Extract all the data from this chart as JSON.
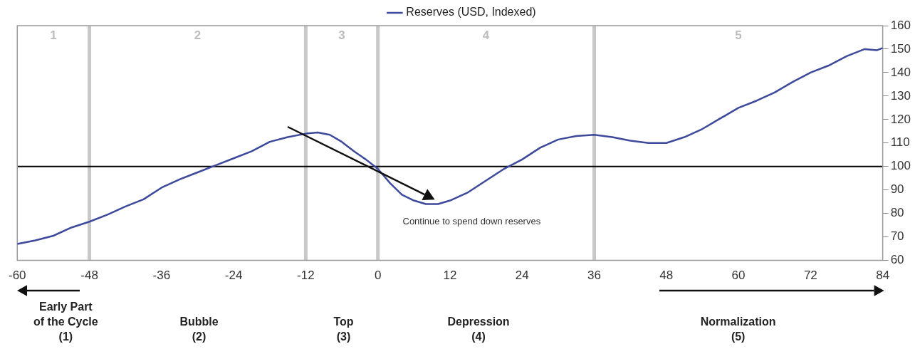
{
  "chart_data": {
    "type": "line",
    "x": [
      -60,
      -57,
      -54,
      -51,
      -48,
      -45,
      -42,
      -39,
      -36,
      -33,
      -30,
      -27,
      -24,
      -21,
      -18,
      -15,
      -12,
      -10,
      -8,
      -6,
      -4,
      -2,
      0,
      2,
      4,
      6,
      8,
      10,
      12,
      15,
      18,
      21,
      24,
      27,
      30,
      33,
      36,
      39,
      42,
      45,
      48,
      51,
      54,
      57,
      60,
      63,
      66,
      69,
      72,
      75,
      78,
      81,
      83,
      84
    ],
    "series": [
      {
        "name": "Reserves (USD, Indexed)",
        "color": "#3d4a9c",
        "values": [
          67,
          68.5,
          70.5,
          74,
          76.5,
          79.5,
          83,
          86,
          91,
          94.5,
          97.5,
          100.5,
          103.5,
          106.5,
          110.5,
          112.5,
          114,
          114.5,
          113.5,
          110.5,
          106.5,
          103,
          99,
          93,
          88,
          85.5,
          84,
          84,
          85.5,
          89,
          94,
          99,
          103,
          108,
          111.5,
          113,
          113.5,
          112.5,
          111,
          110,
          110,
          112.5,
          116,
          120.5,
          125,
          128,
          131.5,
          136,
          140,
          143,
          147,
          150,
          149.5,
          150.5
        ]
      }
    ],
    "xlim": [
      -60,
      84
    ],
    "xticks": [
      -60,
      -48,
      -36,
      -24,
      -12,
      0,
      12,
      24,
      36,
      48,
      60,
      72,
      84
    ],
    "ylim": [
      60,
      160
    ],
    "yticks": [
      60,
      70,
      80,
      90,
      100,
      110,
      120,
      130,
      140,
      150,
      160
    ],
    "grid": false,
    "legend": "top",
    "marker": "none",
    "line_style": "solid",
    "ref_lines": [
      {
        "axis": "x",
        "value": -48,
        "color": "#c8c8c8"
      },
      {
        "axis": "x",
        "value": -12,
        "color": "#c8c8c8"
      },
      {
        "axis": "x",
        "value": 0,
        "color": "#c8c8c8"
      },
      {
        "axis": "x",
        "value": 36,
        "color": "#c8c8c8"
      },
      {
        "axis": "y",
        "value": 100,
        "color": "#000000"
      }
    ],
    "annotations": [
      "1",
      "2",
      "3",
      "4",
      "5",
      "Continue to spend down reserves",
      "Early Part\nof the Cycle\n(1)",
      "Bubble\n(2)",
      "Top\n(3)",
      "Depression\n(4)",
      "Normalization\n(5)"
    ]
  }
}
